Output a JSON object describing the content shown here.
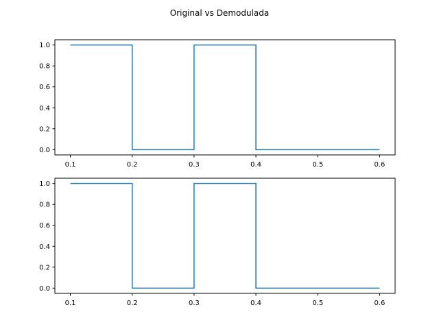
{
  "chart_data": {
    "type": "line",
    "title": "Original vs Demodulada",
    "line_color": "#1f77b4",
    "subplots": [
      {
        "xlim": [
          0.075,
          0.625
        ],
        "ylim": [
          -0.05,
          1.05
        ],
        "xticks": [
          0.1,
          0.2,
          0.3,
          0.4,
          0.5,
          0.6
        ],
        "xtick_labels": [
          "0.1",
          "0.2",
          "0.3",
          "0.4",
          "0.5",
          "0.6"
        ],
        "yticks": [
          0.0,
          0.2,
          0.4,
          0.6,
          0.8,
          1.0
        ],
        "ytick_labels": [
          "0.0",
          "0.2",
          "0.4",
          "0.6",
          "0.8",
          "1.0"
        ],
        "grid": false,
        "series": [
          {
            "x": [
              0.1,
              0.2,
              0.2,
              0.3,
              0.3,
              0.4,
              0.4,
              0.6
            ],
            "y": [
              1,
              1,
              0,
              0,
              1,
              1,
              0,
              0
            ]
          }
        ]
      },
      {
        "xlim": [
          0.075,
          0.625
        ],
        "ylim": [
          -0.05,
          1.05
        ],
        "xticks": [
          0.1,
          0.2,
          0.3,
          0.4,
          0.5,
          0.6
        ],
        "xtick_labels": [
          "0.1",
          "0.2",
          "0.3",
          "0.4",
          "0.5",
          "0.6"
        ],
        "yticks": [
          0.0,
          0.2,
          0.4,
          0.6,
          0.8,
          1.0
        ],
        "ytick_labels": [
          "0.0",
          "0.2",
          "0.4",
          "0.6",
          "0.8",
          "1.0"
        ],
        "grid": false,
        "series": [
          {
            "x": [
              0.1,
              0.2,
              0.2,
              0.3,
              0.3,
              0.4,
              0.4,
              0.6
            ],
            "y": [
              1,
              1,
              0,
              0,
              1,
              1,
              0,
              0
            ]
          }
        ]
      }
    ]
  }
}
